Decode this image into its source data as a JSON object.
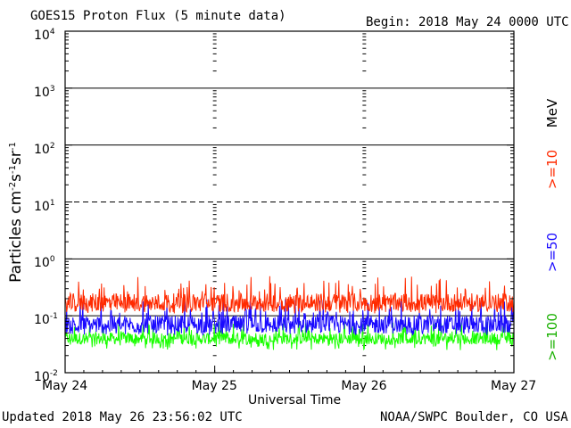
{
  "header": {
    "title": "GOES15 Proton Flux (5 minute data)",
    "begin": "Begin: 2018 May 24 0000 UTC"
  },
  "footer": {
    "updated": "Updated 2018 May 26 23:56:02 UTC",
    "source": "NOAA/SWPC Boulder, CO USA"
  },
  "colors": {
    "ge10": "#ff2a00",
    "ge50": "#1a0aff",
    "ge100": "#19ff00",
    "frame": "#000000"
  },
  "chart_data": {
    "type": "line",
    "title": "GOES15 Proton Flux (5 minute data)",
    "xlabel": "Universal Time",
    "ylabel_base": "Particles cm",
    "ylabel_parts": [
      "-2",
      "s",
      "-1",
      "sr",
      "-1"
    ],
    "yscale": "log",
    "ylim": [
      0.01,
      10000
    ],
    "grid": true,
    "dashed_gridline_at": 10,
    "xlim": [
      "2018-05-24",
      "2018-05-27"
    ],
    "x_ticks": [
      "May 24",
      "May 25",
      "May 26",
      "May 27"
    ],
    "y_ticks": [
      {
        "base": "10",
        "exp": "-2"
      },
      {
        "base": "10",
        "exp": "-1"
      },
      {
        "base": "10",
        "exp": "0"
      },
      {
        "base": "10",
        "exp": "1"
      },
      {
        "base": "10",
        "exp": "2"
      },
      {
        "base": "10",
        "exp": "3"
      },
      {
        "base": "10",
        "exp": "4"
      }
    ],
    "energy_unit": "MeV",
    "series": [
      {
        "name": ">=10",
        "color": "#ff2a00",
        "typical": 0.17,
        "peak": 0.5,
        "low": 0.11
      },
      {
        "name": ">=50",
        "color": "#1a0aff",
        "typical": 0.07,
        "peak": 0.2,
        "low": 0.045
      },
      {
        "name": ">=100",
        "color": "#19ff00",
        "typical": 0.04,
        "peak": 0.08,
        "low": 0.025
      }
    ],
    "sample_interval_minutes": 5
  }
}
